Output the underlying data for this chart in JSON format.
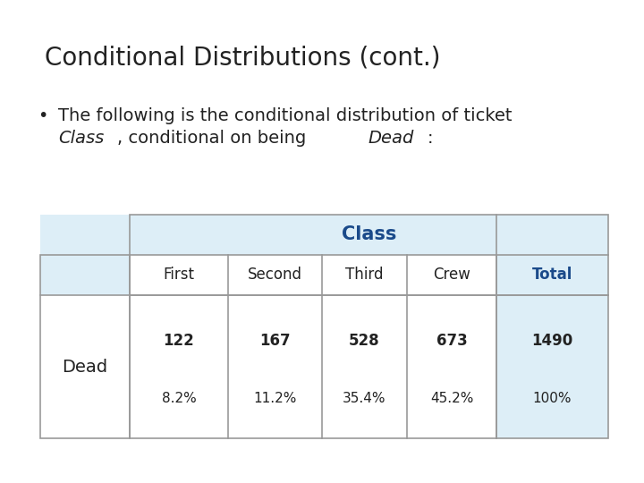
{
  "title": "Conditional Distributions (cont.)",
  "bullet_line1": "The following is the conditional distribution of ticket",
  "table_bg_color": "#ddeef7",
  "table_header_color": "#1a4a8a",
  "col_headers": [
    "First",
    "Second",
    "Third",
    "Crew",
    "Total"
  ],
  "row_label": "Dead",
  "row_values": [
    "122",
    "167",
    "528",
    "673",
    "1490"
  ],
  "row_percents": [
    "8.2%",
    "11.2%",
    "35.4%",
    "45.2%",
    "100%"
  ],
  "class_label": "Class",
  "bg_color": "#ffffff",
  "border_color": "#999999",
  "title_fontsize": 20,
  "body_fontsize": 14
}
